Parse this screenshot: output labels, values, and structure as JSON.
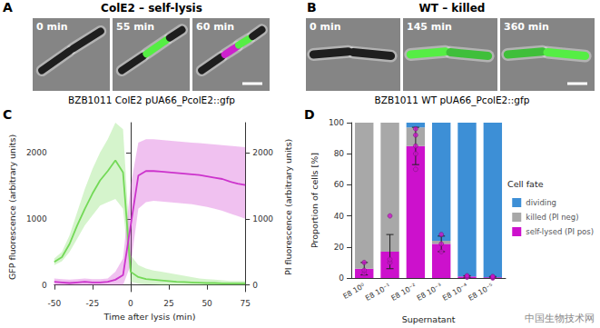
{
  "panels": [
    {
      "label": "A",
      "title": "ColE2 – self-lysis",
      "frames": [
        "0 min",
        "55 min",
        "60 min"
      ],
      "caption": "BZB1011 ColE2 pUA66_PcolE2::gfp"
    },
    {
      "label": "B",
      "title": "WT – killed",
      "frames": [
        "0 min",
        "145 min",
        "360 min"
      ],
      "caption": "BZB1011 WT pUA66_PcolE2::gfp"
    }
  ],
  "chart_data": [
    {
      "panel": "C",
      "type": "line",
      "xlabel": "Time after lysis (min)",
      "ylabel": "GFP fluorescence (arbitrary units)",
      "y2label": "PI fluorescence (arbitrary units)",
      "x": [
        -50,
        -45,
        -40,
        -35,
        -30,
        -25,
        -20,
        -15,
        -10,
        -5,
        0,
        5,
        10,
        15,
        20,
        25,
        30,
        35,
        40,
        45,
        50,
        55,
        60,
        65,
        70,
        75
      ],
      "xlim": [
        -50,
        75
      ],
      "xticks": [
        -50,
        -25,
        0,
        25,
        50,
        75
      ],
      "ylim": [
        -100,
        2450
      ],
      "yticks": [
        0,
        1000,
        2000
      ],
      "y2lim": [
        -100,
        2450
      ],
      "y2ticks": [
        0,
        1000,
        2000
      ],
      "grid": false,
      "series": [
        {
          "color": "#73d957",
          "values": [
            350,
            420,
            620,
            900,
            1150,
            1380,
            1580,
            1720,
            1880,
            1700,
            200,
            120,
            90,
            80,
            70,
            60,
            50,
            45,
            40,
            35,
            30,
            30,
            25,
            25,
            25,
            25
          ],
          "lower": [
            300,
            360,
            500,
            700,
            900,
            1050,
            1200,
            1250,
            1300,
            1150,
            50,
            20,
            10,
            5,
            0,
            0,
            0,
            0,
            0,
            0,
            0,
            0,
            0,
            0,
            0,
            0
          ],
          "upper": [
            400,
            500,
            750,
            1100,
            1450,
            1750,
            2000,
            2200,
            2450,
            2350,
            450,
            300,
            250,
            220,
            200,
            180,
            160,
            140,
            120,
            100,
            90,
            80,
            70,
            60,
            60,
            60
          ]
        },
        {
          "color": "#cc33cc",
          "axis": "y2",
          "values": [
            50,
            40,
            30,
            40,
            50,
            40,
            40,
            50,
            80,
            150,
            900,
            1650,
            1720,
            1720,
            1710,
            1700,
            1690,
            1680,
            1670,
            1660,
            1640,
            1620,
            1600,
            1560,
            1530,
            1510
          ],
          "lower": [
            0,
            0,
            0,
            0,
            0,
            0,
            0,
            0,
            0,
            0,
            300,
            1150,
            1250,
            1270,
            1260,
            1250,
            1240,
            1230,
            1220,
            1200,
            1180,
            1150,
            1120,
            1080,
            1040,
            1000
          ],
          "upper": [
            100,
            90,
            80,
            90,
            100,
            90,
            90,
            100,
            200,
            400,
            1500,
            2150,
            2200,
            2200,
            2190,
            2180,
            2170,
            2160,
            2150,
            2140,
            2130,
            2120,
            2110,
            2100,
            2090,
            2080
          ]
        }
      ]
    },
    {
      "panel": "D",
      "type": "bar",
      "stacked": true,
      "xlabel": "Supernatant",
      "ylabel": "Proportion of cells [%]",
      "categories": [
        "E8 10⁰",
        "E8 10⁻¹",
        "E8 10⁻²",
        "E8 10⁻³",
        "E8 10⁻⁴",
        "E8 10⁻⁵"
      ],
      "ylim": [
        0,
        100
      ],
      "yticks": [
        0,
        20,
        40,
        60,
        80,
        100
      ],
      "grid": false,
      "legend": "right",
      "legend_title": "Cell fate",
      "series": [
        {
          "name": "self-lysed (PI pos)",
          "color": "#cc11cc",
          "values": [
            6,
            17,
            85,
            22,
            1,
            0.5
          ],
          "error": [
            4,
            11,
            12,
            5,
            0.5,
            0.5
          ],
          "replicates": [
            [
              3,
              5,
              10
            ],
            [
              10,
              12,
              40
            ],
            [
              70,
              80,
              85,
              92,
              96
            ],
            [
              17,
              22,
              28
            ],
            [
              0.5,
              1,
              1.5
            ],
            [
              0,
              0.5,
              1
            ]
          ]
        },
        {
          "name": "killed (PI neg)",
          "color": "#a8a8a8",
          "values": [
            94,
            83,
            12,
            2,
            0,
            0
          ]
        },
        {
          "name": "dividing",
          "color": "#3d8fd6",
          "values": [
            0,
            0,
            3,
            76,
            99,
            99.5
          ]
        }
      ]
    }
  ],
  "watermark": "中国生物技术网"
}
